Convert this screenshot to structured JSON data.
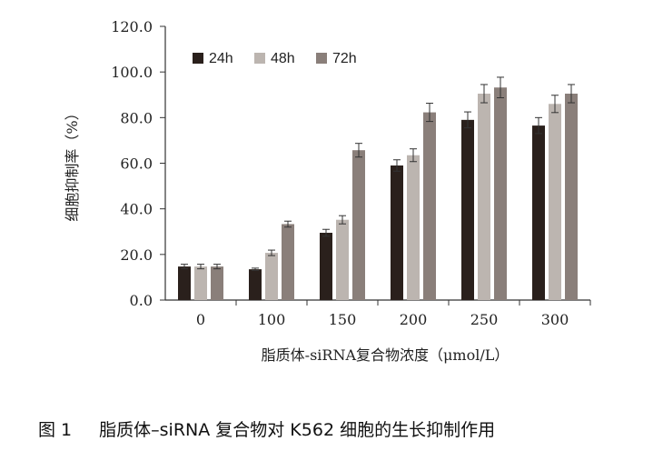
{
  "chart_data": {
    "type": "bar",
    "categories": [
      "0",
      "100",
      "150",
      "200",
      "250",
      "300"
    ],
    "series": [
      {
        "name": "24h",
        "color": "#2a201c",
        "values": [
          14.7,
          13.5,
          29.5,
          59.0,
          79.0,
          76.5
        ],
        "errors": [
          1.0,
          0.5,
          1.5,
          2.5,
          3.5,
          3.5
        ]
      },
      {
        "name": "48h",
        "color": "#bcb5b0",
        "values": [
          14.7,
          20.7,
          35.2,
          63.5,
          90.5,
          86.0
        ],
        "errors": [
          1.0,
          1.2,
          1.8,
          2.8,
          4.0,
          3.8
        ]
      },
      {
        "name": "72h",
        "color": "#8a7f7a",
        "values": [
          14.7,
          33.3,
          65.7,
          82.3,
          93.2,
          90.5
        ],
        "errors": [
          1.0,
          1.3,
          3.0,
          4.0,
          4.5,
          4.0
        ]
      }
    ],
    "yticks": [
      "0.0",
      "20.0",
      "40.0",
      "60.0",
      "80.0",
      "100.0",
      "120.0"
    ],
    "ylim": [
      0,
      120
    ],
    "ylabel": "细胞抑制率（%）",
    "xlabel": "脂质体-siRNA复合物浓度（μmol/L）",
    "legend_position": "top-left",
    "grid": false
  },
  "caption": {
    "number": "图 1",
    "text": "脂质体–siRNA 复合物对 K562 细胞的生长抑制作用"
  }
}
